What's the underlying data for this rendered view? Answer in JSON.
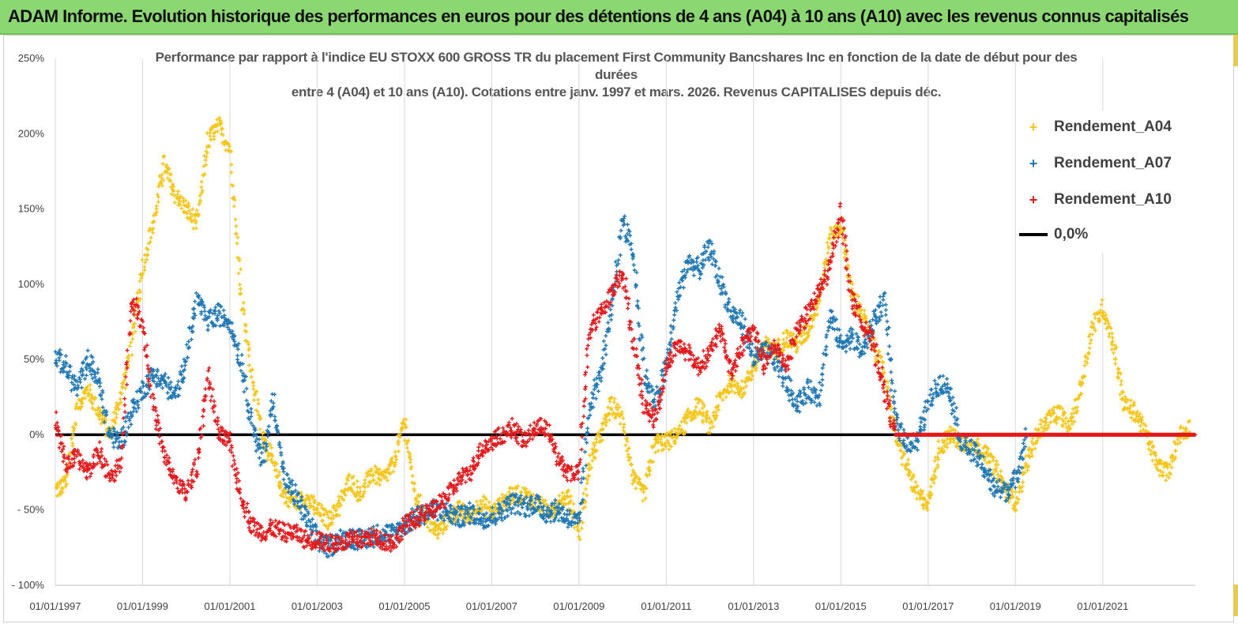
{
  "banner": {
    "title": "ADAM Informe. Evolution historique des performances en euros pour des détentions de 4 ans (A04) à 10 ans (A10) avec les revenus connus capitalisés"
  },
  "chart_data": {
    "type": "scatter",
    "title_lines": [
      "Performance par rapport à l'indice EU STOXX 600 GROSS TR  du placement First Community Bancshares Inc en fonction de la date de début pour des",
      "durées",
      "entre 4 (A04) et 10 ans (A10). Cotations entre janv. 1997 et mars. 2026. Revenus CAPITALISES depuis déc."
    ],
    "xlabel": "",
    "ylabel": "",
    "xlim": [
      "1997-01-01",
      "2023-02-15"
    ],
    "ylim": [
      -100,
      250
    ],
    "x_ticks": [
      "01/01/1997",
      "01/01/1999",
      "01/01/2001",
      "01/01/2003",
      "01/01/2005",
      "01/01/2007",
      "01/01/2009",
      "01/01/2011",
      "01/01/2013",
      "01/01/2015",
      "01/01/2017",
      "01/01/2019",
      "01/01/2021"
    ],
    "y_ticks": [
      {
        "value": 250,
        "label": "250%"
      },
      {
        "value": 200,
        "label": "200%"
      },
      {
        "value": 150,
        "label": "150%"
      },
      {
        "value": 100,
        "label": "100%"
      },
      {
        "value": 50,
        "label": "50%"
      },
      {
        "value": 0,
        "label": "0%"
      },
      {
        "value": -50,
        "label": "- 50%"
      },
      {
        "value": -100,
        "label": "- 100%"
      }
    ],
    "grid": "vertical",
    "legend_position": "top-right",
    "series": [
      {
        "name": "Rendement_A04",
        "color": "#f5c518",
        "x": [
          "1997-01-01",
          "1997-04-01",
          "1997-07-01",
          "1997-10-01",
          "1998-01-01",
          "1998-04-01",
          "1998-07-01",
          "1998-10-01",
          "1999-01-01",
          "1999-04-01",
          "1999-07-01",
          "1999-10-01",
          "2000-01-01",
          "2000-04-01",
          "2000-07-01",
          "2000-10-01",
          "2001-01-01",
          "2001-04-01",
          "2001-07-01",
          "2001-10-01",
          "2002-01-01",
          "2002-04-01",
          "2002-07-01",
          "2002-10-01",
          "2003-01-01",
          "2003-04-01",
          "2003-07-01",
          "2003-10-01",
          "2004-01-01",
          "2004-04-01",
          "2004-07-01",
          "2004-10-01",
          "2005-01-01",
          "2005-04-01",
          "2005-07-01",
          "2005-10-01",
          "2006-01-01",
          "2006-04-01",
          "2006-07-01",
          "2006-10-01",
          "2007-01-01",
          "2007-04-01",
          "2007-07-01",
          "2007-10-01",
          "2008-01-01",
          "2008-04-01",
          "2008-07-01",
          "2008-10-01",
          "2009-01-01",
          "2009-04-01",
          "2009-07-01",
          "2009-10-01",
          "2010-01-01",
          "2010-04-01",
          "2010-07-01",
          "2010-10-01",
          "2011-01-01",
          "2011-04-01",
          "2011-07-01",
          "2011-10-01",
          "2012-01-01",
          "2012-04-01",
          "2012-07-01",
          "2012-10-01",
          "2013-01-01",
          "2013-04-01",
          "2013-07-01",
          "2013-10-01",
          "2014-01-01",
          "2014-04-01",
          "2014-07-01",
          "2014-10-01",
          "2015-01-01",
          "2015-04-01",
          "2015-07-01",
          "2015-10-01",
          "2016-01-01",
          "2016-04-01",
          "2016-07-01",
          "2016-10-01",
          "2017-01-01",
          "2017-04-01",
          "2017-07-01",
          "2017-10-01",
          "2018-01-01",
          "2018-04-01",
          "2018-07-01",
          "2018-10-01",
          "2019-01-01",
          "2019-04-01",
          "2019-07-01",
          "2019-10-01",
          "2020-01-01",
          "2020-04-01",
          "2020-07-01",
          "2020-10-01",
          "2021-01-01",
          "2021-04-01",
          "2021-07-01",
          "2021-10-01",
          "2022-01-01",
          "2022-04-01",
          "2022-07-01",
          "2022-10-01",
          "2023-01-01"
        ],
        "y": [
          -37,
          -33,
          20,
          30,
          15,
          0,
          25,
          60,
          110,
          140,
          180,
          160,
          150,
          140,
          195,
          205,
          190,
          100,
          40,
          0,
          -20,
          -40,
          -45,
          -42,
          -50,
          -57,
          -48,
          -30,
          -40,
          -25,
          -30,
          -20,
          10,
          -40,
          -55,
          -65,
          -55,
          -50,
          -55,
          -45,
          -52,
          -45,
          -40,
          -40,
          -45,
          -50,
          -48,
          -40,
          -65,
          -20,
          0,
          20,
          10,
          -30,
          -40,
          -5,
          -5,
          0,
          10,
          20,
          5,
          25,
          35,
          30,
          45,
          60,
          55,
          65,
          60,
          70,
          90,
          130,
          140,
          95,
          80,
          60,
          40,
          0,
          -20,
          -40,
          -45,
          -10,
          0,
          -5,
          -5,
          -10,
          -20,
          -35,
          -45,
          -20,
          0,
          10,
          15,
          5,
          30,
          70,
          85,
          60,
          20,
          15,
          0,
          -20,
          -25,
          0,
          5
        ],
        "spread": 6
      },
      {
        "name": "Rendement_A07",
        "color": "#1f77b4",
        "x": [
          "1997-01-01",
          "1997-04-01",
          "1997-07-01",
          "1997-10-01",
          "1998-01-01",
          "1998-04-01",
          "1998-07-01",
          "1998-10-01",
          "1999-01-01",
          "1999-04-01",
          "1999-07-01",
          "1999-10-01",
          "2000-01-01",
          "2000-04-01",
          "2000-07-01",
          "2000-10-01",
          "2001-01-01",
          "2001-04-01",
          "2001-07-01",
          "2001-10-01",
          "2002-01-01",
          "2002-04-01",
          "2002-07-01",
          "2002-10-01",
          "2003-01-01",
          "2003-04-01",
          "2003-07-01",
          "2003-10-01",
          "2004-01-01",
          "2004-04-01",
          "2004-07-01",
          "2004-10-01",
          "2005-01-01",
          "2005-04-01",
          "2005-07-01",
          "2005-10-01",
          "2006-01-01",
          "2006-04-01",
          "2006-07-01",
          "2006-10-01",
          "2007-01-01",
          "2007-04-01",
          "2007-07-01",
          "2007-10-01",
          "2008-01-01",
          "2008-04-01",
          "2008-07-01",
          "2008-10-01",
          "2009-01-01",
          "2009-04-01",
          "2009-07-01",
          "2009-10-01",
          "2010-01-01",
          "2010-04-01",
          "2010-07-01",
          "2010-10-01",
          "2011-01-01",
          "2011-04-01",
          "2011-07-01",
          "2011-10-01",
          "2012-01-01",
          "2012-04-01",
          "2012-07-01",
          "2012-10-01",
          "2013-01-01",
          "2013-04-01",
          "2013-07-01",
          "2013-10-01",
          "2014-01-01",
          "2014-04-01",
          "2014-07-01",
          "2014-10-01",
          "2015-01-01",
          "2015-04-01",
          "2015-07-01",
          "2015-10-01",
          "2016-01-01",
          "2016-04-01",
          "2016-07-01",
          "2016-10-01",
          "2017-01-01",
          "2017-04-01",
          "2017-07-01",
          "2017-10-01",
          "2018-01-01",
          "2018-04-01",
          "2018-07-01",
          "2018-10-01",
          "2019-01-01",
          "2019-04-01"
        ],
        "y": [
          52,
          45,
          30,
          50,
          35,
          0,
          -5,
          15,
          30,
          40,
          35,
          25,
          50,
          90,
          75,
          80,
          75,
          50,
          10,
          -20,
          25,
          -30,
          -40,
          -55,
          -70,
          -75,
          -70,
          -68,
          -70,
          -68,
          -65,
          -66,
          -60,
          -55,
          -52,
          -50,
          -52,
          -55,
          -52,
          -55,
          -55,
          -50,
          -45,
          -48,
          -45,
          -52,
          -50,
          -55,
          -60,
          20,
          40,
          80,
          145,
          120,
          40,
          20,
          45,
          90,
          115,
          110,
          125,
          100,
          80,
          75,
          50,
          55,
          50,
          35,
          20,
          30,
          25,
          80,
          60,
          65,
          55,
          75,
          90,
          10,
          -5,
          -5,
          20,
          35,
          30,
          -5,
          -10,
          -20,
          -35,
          -38,
          -30,
          0
        ],
        "spread": 7
      },
      {
        "name": "Rendement_A10",
        "color": "#e31a1c",
        "x": [
          "1997-01-01",
          "1997-04-01",
          "1997-07-01",
          "1997-10-01",
          "1998-01-01",
          "1998-04-01",
          "1998-07-01",
          "1998-10-01",
          "1999-01-01",
          "1999-04-01",
          "1999-07-01",
          "1999-10-01",
          "2000-01-01",
          "2000-04-01",
          "2000-07-01",
          "2000-10-01",
          "2001-01-01",
          "2001-04-01",
          "2001-07-01",
          "2001-10-01",
          "2002-01-01",
          "2002-04-01",
          "2002-07-01",
          "2002-10-01",
          "2003-01-01",
          "2003-04-01",
          "2003-07-01",
          "2003-10-01",
          "2004-01-01",
          "2004-04-01",
          "2004-07-01",
          "2004-10-01",
          "2005-01-01",
          "2005-04-01",
          "2005-07-01",
          "2005-10-01",
          "2006-01-01",
          "2006-04-01",
          "2006-07-01",
          "2006-10-01",
          "2007-01-01",
          "2007-04-01",
          "2007-07-01",
          "2007-10-01",
          "2008-01-01",
          "2008-04-01",
          "2008-07-01",
          "2008-10-01",
          "2009-01-01",
          "2009-04-01",
          "2009-07-01",
          "2009-10-01",
          "2010-01-01",
          "2010-04-01",
          "2010-07-01",
          "2010-10-01",
          "2011-01-01",
          "2011-04-01",
          "2011-07-01",
          "2011-10-01",
          "2012-01-01",
          "2012-04-01",
          "2012-07-01",
          "2012-10-01",
          "2013-01-01",
          "2013-04-01",
          "2013-07-01",
          "2013-10-01",
          "2014-01-01",
          "2014-04-01",
          "2014-07-01",
          "2014-10-01",
          "2015-01-01",
          "2015-04-01",
          "2015-07-01",
          "2015-10-01",
          "2016-01-01",
          "2016-04-01"
        ],
        "y": [
          10,
          -20,
          -15,
          -25,
          -10,
          -30,
          -20,
          90,
          75,
          20,
          -15,
          -30,
          -40,
          -20,
          40,
          0,
          -5,
          -40,
          -60,
          -65,
          -62,
          -65,
          -65,
          -70,
          -70,
          -72,
          -72,
          -70,
          -70,
          -68,
          -70,
          -72,
          -60,
          -56,
          -52,
          -48,
          -40,
          -30,
          -25,
          -10,
          -5,
          0,
          5,
          -5,
          5,
          5,
          -15,
          -25,
          -25,
          70,
          80,
          95,
          110,
          60,
          20,
          10,
          45,
          60,
          55,
          45,
          55,
          70,
          40,
          60,
          70,
          45,
          60,
          45,
          70,
          80,
          95,
          110,
          150,
          90,
          75,
          60,
          30,
          0
        ],
        "spread": 6
      },
      {
        "name": "0,0%",
        "color": "#000000",
        "kind": "line"
      }
    ],
    "flat_tail_a10": {
      "from": "2016-04-01",
      "to": "2023-02-15",
      "value": 0
    }
  }
}
